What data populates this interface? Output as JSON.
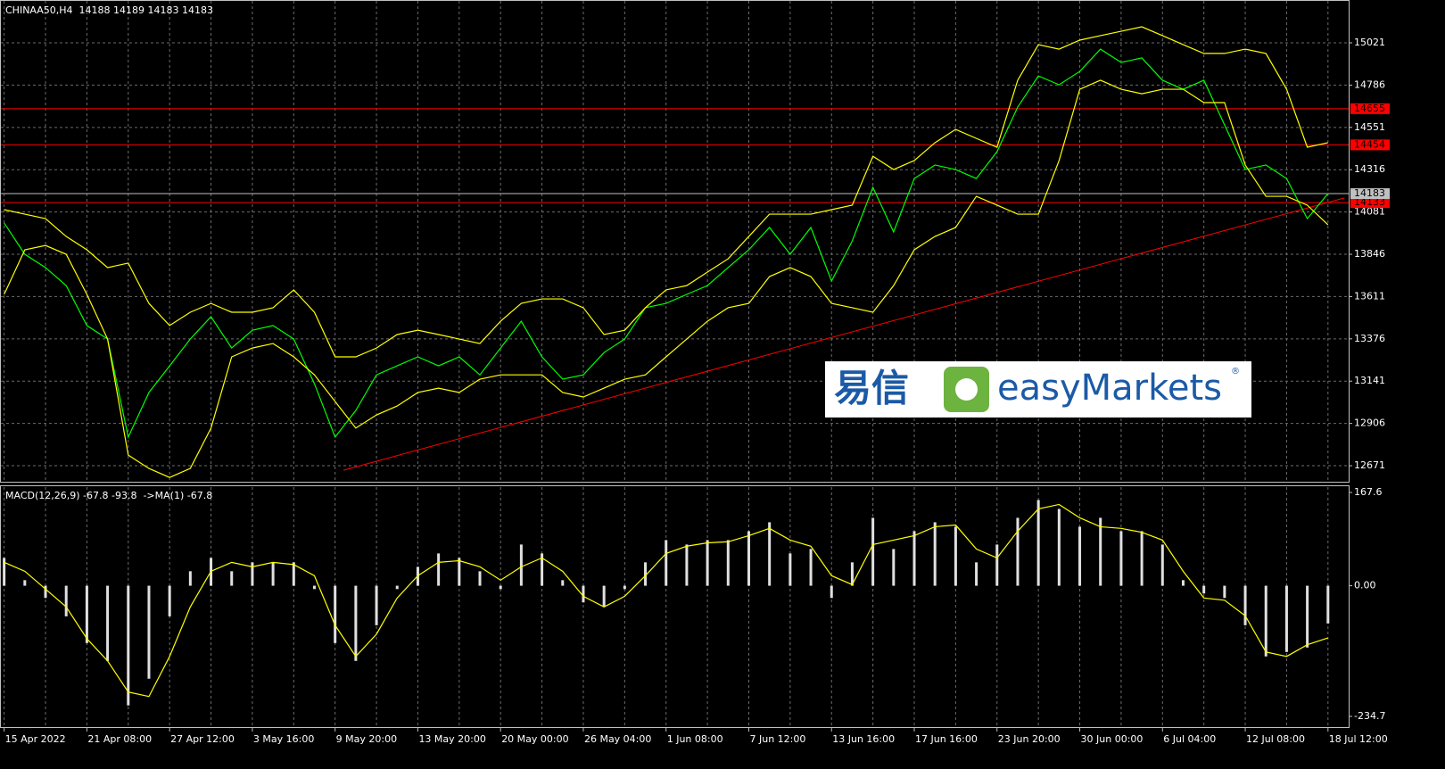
{
  "chart_data": [
    {
      "type": "line",
      "title": "CHINAA50,H4  14188 14189 14183 14183",
      "categories": [
        "15 Apr 2022",
        null,
        null,
        null,
        "21 Apr 08:00",
        null,
        null,
        null,
        "27 Apr 12:00",
        null,
        null,
        null,
        "3 May 16:00",
        null,
        null,
        null,
        "9 May 20:00",
        null,
        null,
        null,
        "13 May 20:00",
        null,
        null,
        null,
        "20 May 00:00",
        null,
        null,
        null,
        "26 May 04:00",
        null,
        null,
        null,
        "1 Jun 08:00",
        null,
        null,
        null,
        "7 Jun 12:00",
        null,
        null,
        null,
        "13 Jun 16:00",
        null,
        null,
        null,
        "17 Jun 16:00",
        null,
        null,
        null,
        "23 Jun 20:00",
        null,
        null,
        null,
        "30 Jun 00:00",
        null,
        null,
        null,
        "6 Jul 04:00",
        null,
        null,
        null,
        "12 Jul 08:00",
        null,
        null,
        null,
        "18 Jul 12:00"
      ],
      "series": [
        {
          "name": "Close",
          "color": "#00ff00",
          "values": [
            14020,
            13846,
            13772,
            13672,
            13450,
            13375,
            12830,
            13078,
            13226,
            13375,
            13499,
            13325,
            13424,
            13450,
            13375,
            13127,
            12830,
            12978,
            13176,
            13226,
            13276,
            13226,
            13276,
            13176,
            13325,
            13474,
            13276,
            13152,
            13176,
            13300,
            13375,
            13549,
            13573,
            13623,
            13672,
            13772,
            13871,
            13995,
            13846,
            13995,
            13697,
            13920,
            14218,
            13970,
            14267,
            14342,
            14317,
            14267,
            14416,
            14664,
            14837,
            14788,
            14862,
            14986,
            14912,
            14937,
            14813,
            14763,
            14813,
            14565,
            14317,
            14342,
            14267,
            14044,
            14183
          ]
        },
        {
          "name": "Upper band",
          "color": "#ffff00",
          "values": [
            14094,
            14069,
            14044,
            13945,
            13871,
            13772,
            13797,
            13573,
            13450,
            13524,
            13573,
            13524,
            13524,
            13549,
            13648,
            13524,
            13276,
            13276,
            13325,
            13400,
            13424,
            13400,
            13375,
            13350,
            13474,
            13573,
            13598,
            13598,
            13549,
            13400,
            13424,
            13549,
            13648,
            13672,
            13747,
            13821,
            13945,
            14069,
            14069,
            14069,
            14094,
            14119,
            14391,
            14317,
            14367,
            14466,
            14540,
            14490,
            14441,
            14813,
            15011,
            14986,
            15036,
            15061,
            15085,
            15110,
            15061,
            15011,
            14962,
            14962,
            14986,
            14962,
            14763,
            14441,
            14466
          ]
        },
        {
          "name": "Lower band",
          "color": "#ffff00",
          "values": [
            13623,
            13871,
            13895,
            13846,
            13623,
            13375,
            12730,
            12656,
            12606,
            12656,
            12880,
            13276,
            13325,
            13350,
            13276,
            13176,
            13028,
            12880,
            12953,
            13003,
            13078,
            13102,
            13078,
            13152,
            13176,
            13176,
            13176,
            13078,
            13053,
            13102,
            13152,
            13176,
            13276,
            13375,
            13474,
            13549,
            13573,
            13722,
            13772,
            13722,
            13573,
            13549,
            13524,
            13672,
            13871,
            13945,
            13995,
            14168,
            14119,
            14069,
            14069,
            14367,
            14763,
            14813,
            14763,
            14738,
            14763,
            14763,
            14689,
            14689,
            14342,
            14168,
            14168,
            14119,
            14010
          ]
        }
      ],
      "hlines": [
        {
          "value": 14655,
          "color": "#ff0000"
        },
        {
          "value": 14454,
          "color": "#ff0000"
        },
        {
          "value": 14133,
          "color": "#ff0000"
        },
        {
          "value": 14183,
          "color": "#c0c0c0"
        }
      ],
      "trendline": {
        "x": [
          16.4,
          64.8
        ],
        "values": [
          12646,
          14159
        ],
        "color": "#ff0000"
      },
      "xlim": [
        -0.2,
        65
      ],
      "ylim": [
        12582,
        15259
      ],
      "yticks": [
        15021,
        14786,
        14551,
        14316,
        14081,
        13846,
        13611,
        13376,
        13141,
        12906,
        12671
      ],
      "grid": true
    },
    {
      "type": "macd",
      "title": "MACD(12,26,9) -67.8 -93.8  ->MA(1) -67.8",
      "series": [
        {
          "name": "MACD",
          "color": "#e0e0e0",
          "values": [
            50,
            10,
            -22,
            -55,
            -103,
            -135,
            -215,
            -167,
            -55,
            26,
            50,
            26,
            42,
            42,
            42,
            -6,
            -103,
            -135,
            -71,
            -6,
            34,
            58,
            50,
            26,
            -6,
            74,
            58,
            10,
            -30,
            -38,
            -6,
            42,
            82,
            74,
            82,
            82,
            98,
            114,
            58,
            66,
            -22,
            42,
            122,
            66,
            98,
            114,
            106,
            42,
            74,
            122,
            154,
            138,
            106,
            122,
            98,
            98,
            74,
            10,
            -14,
            -22,
            -71,
            -127,
            -119,
            -111,
            -67.8
          ]
        },
        {
          "name": "Signal",
          "color": "#ffff00",
          "values": [
            42,
            26,
            -6,
            -38,
            -95,
            -135,
            -191,
            -199,
            -127,
            -38,
            26,
            42,
            34,
            42,
            38,
            18,
            -71,
            -127,
            -87,
            -22,
            18,
            42,
            45,
            34,
            10,
            34,
            50,
            26,
            -19,
            -38,
            -19,
            18,
            58,
            71,
            77,
            79,
            90,
            103,
            82,
            71,
            18,
            2,
            74,
            82,
            90,
            106,
            109,
            66,
            50,
            98,
            138,
            146,
            122,
            106,
            103,
            96,
            82,
            26,
            -22,
            -26,
            -54,
            -119,
            -127,
            -106,
            -93.8
          ]
        }
      ],
      "xlim": [
        -0.2,
        65
      ],
      "ylim": [
        -253.9,
        178.8
      ],
      "yticks": [
        167.6,
        {
          "value": 0,
          "label": "0.00"
        },
        -234.7
      ]
    }
  ],
  "logo": {
    "cjk": "易信",
    "name": "easyMarkets",
    "mark": "®"
  }
}
